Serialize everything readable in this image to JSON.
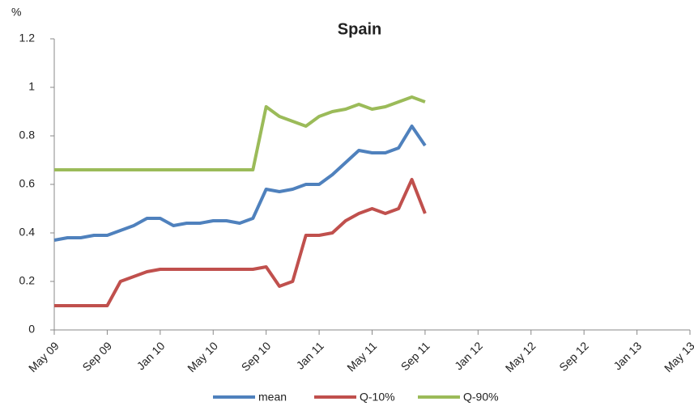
{
  "chart_data": {
    "type": "line",
    "title": "Spain",
    "y_label": "%",
    "x": [
      "2009-05",
      "2009-06",
      "2009-07",
      "2009-08",
      "2009-09",
      "2009-10",
      "2009-11",
      "2009-12",
      "2010-01",
      "2010-02",
      "2010-03",
      "2010-04",
      "2010-05",
      "2010-06",
      "2010-07",
      "2010-08",
      "2010-09",
      "2010-10",
      "2010-11",
      "2010-12",
      "2011-01",
      "2011-02",
      "2011-03",
      "2011-04",
      "2011-05",
      "2011-06",
      "2011-07",
      "2011-08",
      "2011-09"
    ],
    "series": [
      {
        "name": "mean",
        "color": "#4f81bd",
        "values": [
          0.37,
          0.38,
          0.38,
          0.39,
          0.39,
          0.41,
          0.43,
          0.46,
          0.46,
          0.43,
          0.44,
          0.44,
          0.45,
          0.45,
          0.44,
          0.46,
          0.58,
          0.57,
          0.58,
          0.6,
          0.6,
          0.64,
          0.69,
          0.74,
          0.73,
          0.73,
          0.75,
          0.84,
          0.76
        ]
      },
      {
        "name": "Q-10%",
        "color": "#c0504d",
        "values": [
          0.1,
          0.1,
          0.1,
          0.1,
          0.1,
          0.2,
          0.22,
          0.24,
          0.25,
          0.25,
          0.25,
          0.25,
          0.25,
          0.25,
          0.25,
          0.25,
          0.26,
          0.18,
          0.2,
          0.39,
          0.39,
          0.4,
          0.45,
          0.48,
          0.5,
          0.48,
          0.5,
          0.62,
          0.48
        ]
      },
      {
        "name": "Q-90%",
        "color": "#9bbb59",
        "values": [
          0.66,
          0.66,
          0.66,
          0.66,
          0.66,
          0.66,
          0.66,
          0.66,
          0.66,
          0.66,
          0.66,
          0.66,
          0.66,
          0.66,
          0.66,
          0.66,
          0.92,
          0.88,
          0.86,
          0.84,
          0.88,
          0.9,
          0.91,
          0.93,
          0.91,
          0.92,
          0.94,
          0.96,
          0.94
        ]
      }
    ],
    "xlim": [
      "2009-05",
      "2013-05"
    ],
    "xticks": [
      {
        "value": "2009-05",
        "label": "May 09"
      },
      {
        "value": "2009-09",
        "label": "Sep 09"
      },
      {
        "value": "2010-01",
        "label": "Jan 10"
      },
      {
        "value": "2010-05",
        "label": "May 10"
      },
      {
        "value": "2010-09",
        "label": "Sep 10"
      },
      {
        "value": "2011-01",
        "label": "Jan 11"
      },
      {
        "value": "2011-05",
        "label": "May 11"
      },
      {
        "value": "2011-09",
        "label": "Sep 11"
      },
      {
        "value": "2012-01",
        "label": "Jan 12"
      },
      {
        "value": "2012-05",
        "label": "May 12"
      },
      {
        "value": "2012-09",
        "label": "Sep 12"
      },
      {
        "value": "2013-01",
        "label": "Jan 13"
      },
      {
        "value": "2013-05",
        "label": "May 13"
      }
    ],
    "ylim": [
      0,
      1.2
    ],
    "yticks": [
      0,
      0.2,
      0.4,
      0.6,
      0.8,
      1,
      1.2
    ],
    "grid": false,
    "legend": "bottom"
  }
}
